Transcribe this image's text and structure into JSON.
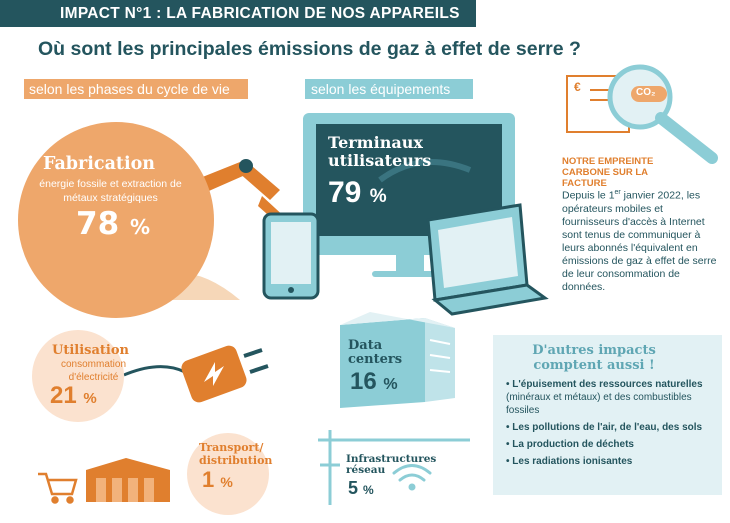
{
  "header": {
    "band_label": "IMPACT N°1 : LA FABRICATION DE NOS APPAREILS",
    "title": "Où sont les principales émissions de gaz à effet de serre ?"
  },
  "sections": {
    "phase_label": "selon les phases du cycle de vie",
    "equipment_label": "selon les équipements"
  },
  "lifecycle": {
    "fabrication": {
      "title": "Fabrication",
      "desc": "énergie fossile et extraction de métaux stratégiques",
      "value": "78",
      "unit": "%"
    },
    "utilisation": {
      "title": "Utilisation",
      "desc": "consommation d'électricité",
      "value": "21",
      "unit": "%"
    },
    "transport": {
      "title": "Transport/ distribution",
      "value": "1",
      "unit": "%"
    }
  },
  "equipment": {
    "terminaux": {
      "title": "Terminaux utilisateurs",
      "value": "79",
      "unit": "%"
    },
    "datacenters": {
      "title": "Data centers",
      "value": "16",
      "unit": "%"
    },
    "infra": {
      "title": "Infrastructures réseau",
      "value": "5",
      "unit": "%"
    }
  },
  "note": {
    "title": "NOTRE EMPREINTE CARBONE SUR LA FACTURE",
    "body_start": "Depuis le 1",
    "body_sup": "er",
    "body_rest": " janvier 2022, les opérateurs mobiles et fournisseurs d'accès à Internet sont tenus de communiquer à leurs abonnés l'équivalent en émissions de gaz à effet de serre de leur consommation de données.",
    "icon_text": "CO₂",
    "icon_currency": "€"
  },
  "other_impacts": {
    "title": "D'autres impacts comptent aussi !",
    "items": [
      {
        "bold": "• L'épuisement des ressources naturelles",
        "normal": " (minéraux et métaux) et des combustibles fossiles"
      },
      {
        "bold": "• Les pollutions de l'air, de l'eau, des sols",
        "normal": ""
      },
      {
        "bold": "• La production de déchets",
        "normal": ""
      },
      {
        "bold": "• Les radiations ionisantes",
        "normal": ""
      }
    ]
  },
  "colors": {
    "dark_teal": "#24555e",
    "orange": "#eea76b",
    "dark_orange": "#e07f2e",
    "light_orange": "#fbe2cf",
    "light_blue": "#8ccdd6",
    "pale_blue": "#e2f1f4"
  },
  "icons": [
    "excavator-arm-icon",
    "sand-pile-icon",
    "factory-icon",
    "bulldozer-icon",
    "plug-icon",
    "shopping-cart-icon",
    "warehouse-icon",
    "monitor-icon",
    "smartphone-icon",
    "laptop-icon",
    "server-icon",
    "antenna-icon",
    "wifi-icon",
    "magnifier-icon",
    "bill-icon"
  ]
}
